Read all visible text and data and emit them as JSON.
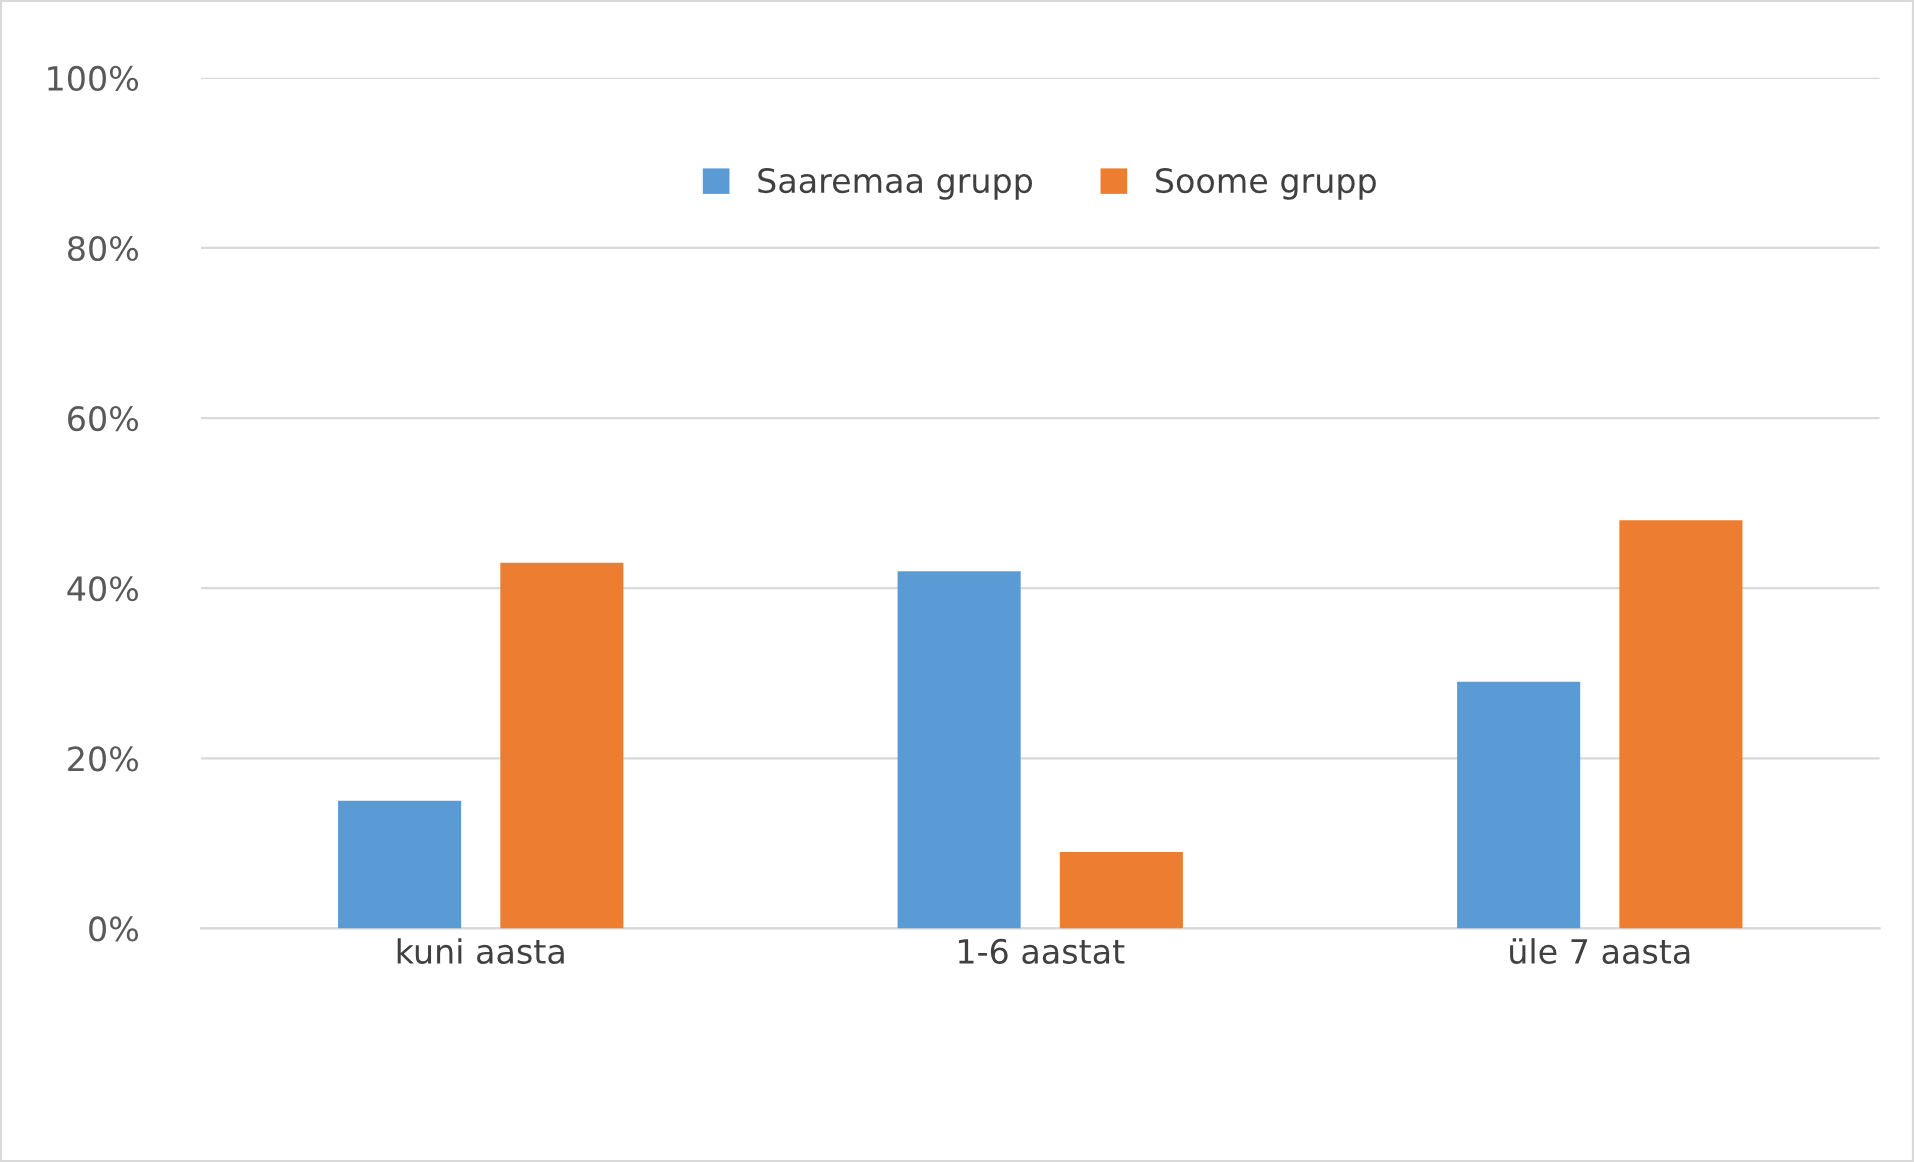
{
  "chart_data": {
    "type": "bar",
    "categories": [
      "kuni aasta",
      "1-6 aastat",
      "üle 7 aasta"
    ],
    "series": [
      {
        "name": "Saaremaa grupp",
        "color": "#5b9bd5",
        "values": [
          15,
          42,
          29
        ]
      },
      {
        "name": "Soome grupp",
        "color": "#ed7d31",
        "values": [
          43,
          9,
          48
        ]
      }
    ],
    "ylim": [
      0,
      100
    ],
    "yticks": [
      {
        "value": 0,
        "label": "0%"
      },
      {
        "value": 20,
        "label": "20%"
      },
      {
        "value": 40,
        "label": "40%"
      },
      {
        "value": 60,
        "label": "60%"
      },
      {
        "value": 80,
        "label": "80%"
      },
      {
        "value": 100,
        "label": "100%"
      }
    ],
    "grid": "y",
    "legend": "top"
  }
}
